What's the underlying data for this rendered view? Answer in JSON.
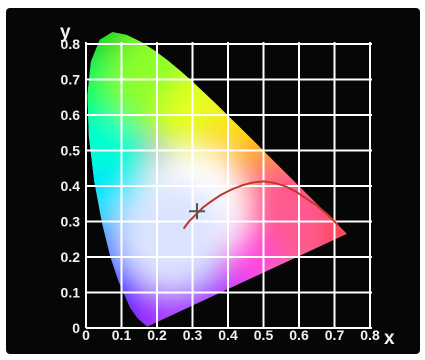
{
  "chart_data": {
    "type": "chromaticity",
    "xlabel": "x",
    "ylabel": "y",
    "xlim": [
      0,
      0.8
    ],
    "ylim": [
      0,
      0.8
    ],
    "x_ticks": [
      "0",
      "0.1",
      "0.2",
      "0.3",
      "0.4",
      "0.5",
      "0.6",
      "0.7",
      "0.8"
    ],
    "y_ticks": [
      "0",
      "0.1",
      "0.2",
      "0.3",
      "0.4",
      "0.5",
      "0.6",
      "0.7",
      "0.8"
    ],
    "grid": true,
    "background": "#060606",
    "grid_color": "#ffffff",
    "locus_curve_color": "#c0392b",
    "white_point": {
      "x": 0.3127,
      "y": 0.329
    },
    "spectral_locus": [
      [
        0.1741,
        0.005
      ],
      [
        0.1738,
        0.0049
      ],
      [
        0.1736,
        0.0049
      ],
      [
        0.1726,
        0.0048
      ],
      [
        0.1714,
        0.0051
      ],
      [
        0.1689,
        0.0069
      ],
      [
        0.1644,
        0.0109
      ],
      [
        0.1566,
        0.0177
      ],
      [
        0.144,
        0.0297
      ],
      [
        0.1241,
        0.0578
      ],
      [
        0.0913,
        0.1327
      ],
      [
        0.0687,
        0.2007
      ],
      [
        0.0454,
        0.295
      ],
      [
        0.0235,
        0.4127
      ],
      [
        0.0082,
        0.5384
      ],
      [
        0.0039,
        0.6548
      ],
      [
        0.0139,
        0.7502
      ],
      [
        0.0389,
        0.812
      ],
      [
        0.0743,
        0.8338
      ],
      [
        0.1142,
        0.8262
      ],
      [
        0.1547,
        0.8059
      ],
      [
        0.1929,
        0.7816
      ],
      [
        0.2296,
        0.7543
      ],
      [
        0.2658,
        0.7243
      ],
      [
        0.3016,
        0.6923
      ],
      [
        0.3373,
        0.6589
      ],
      [
        0.3731,
        0.6245
      ],
      [
        0.4087,
        0.5896
      ],
      [
        0.4441,
        0.5547
      ],
      [
        0.4788,
        0.5202
      ],
      [
        0.5125,
        0.4866
      ],
      [
        0.5448,
        0.4544
      ],
      [
        0.5752,
        0.4242
      ],
      [
        0.6029,
        0.3965
      ],
      [
        0.627,
        0.3725
      ],
      [
        0.6482,
        0.3514
      ],
      [
        0.6658,
        0.334
      ],
      [
        0.6801,
        0.3197
      ],
      [
        0.6915,
        0.3083
      ],
      [
        0.7006,
        0.2993
      ],
      [
        0.7079,
        0.292
      ],
      [
        0.714,
        0.2859
      ],
      [
        0.719,
        0.2809
      ],
      [
        0.723,
        0.277
      ],
      [
        0.726,
        0.274
      ],
      [
        0.7347,
        0.2653
      ]
    ],
    "planckian_locus": [
      [
        0.275,
        0.28
      ],
      [
        0.29,
        0.3
      ],
      [
        0.31,
        0.32
      ],
      [
        0.33,
        0.34
      ],
      [
        0.35,
        0.355
      ],
      [
        0.38,
        0.375
      ],
      [
        0.41,
        0.39
      ],
      [
        0.44,
        0.402
      ],
      [
        0.47,
        0.41
      ],
      [
        0.5,
        0.413
      ],
      [
        0.53,
        0.409
      ],
      [
        0.56,
        0.4
      ],
      [
        0.59,
        0.385
      ],
      [
        0.62,
        0.365
      ],
      [
        0.65,
        0.345
      ],
      [
        0.68,
        0.32
      ],
      [
        0.71,
        0.29
      ]
    ]
  }
}
